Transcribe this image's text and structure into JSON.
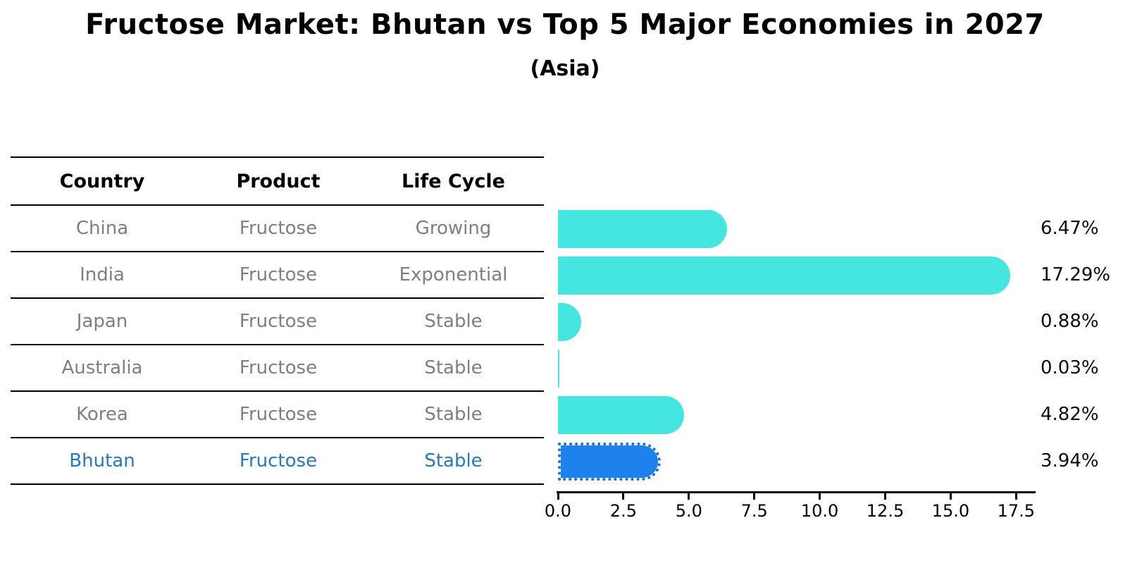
{
  "title": "Fructose Market: Bhutan vs Top 5 Major Economies in 2027",
  "subtitle": "(Asia)",
  "table": {
    "headers": [
      "Country",
      "Product",
      "Life Cycle"
    ],
    "rows": [
      {
        "country": "China",
        "product": "Fructose",
        "life_cycle": "Growing",
        "highlight": false
      },
      {
        "country": "India",
        "product": "Fructose",
        "life_cycle": "Exponential",
        "highlight": false
      },
      {
        "country": "Japan",
        "product": "Fructose",
        "life_cycle": "Stable",
        "highlight": false
      },
      {
        "country": "Australia",
        "product": "Fructose",
        "life_cycle": "Stable",
        "highlight": false
      },
      {
        "country": "Korea",
        "product": "Fructose",
        "life_cycle": "Stable",
        "highlight": false
      },
      {
        "country": "Bhutan",
        "product": "Fructose",
        "life_cycle": "Stable",
        "highlight": true
      }
    ]
  },
  "chart_data": {
    "type": "bar",
    "orientation": "horizontal",
    "categories": [
      "China",
      "India",
      "Japan",
      "Australia",
      "Korea",
      "Bhutan"
    ],
    "values": [
      6.47,
      17.29,
      0.88,
      0.03,
      4.82,
      3.94
    ],
    "value_labels": [
      "6.47%",
      "17.29%",
      "0.88%",
      "0.03%",
      "4.82%",
      "3.94%"
    ],
    "x_tick_labels": [
      "0.0",
      "2.5",
      "5.0",
      "7.5",
      "10.0",
      "12.5",
      "15.0",
      "17.5"
    ],
    "xlim": [
      0,
      18.3
    ],
    "grid": false,
    "legend": false,
    "bar_color": "#45e5e0",
    "highlight_bar_color": "#1e82ec",
    "highlight_index": 5,
    "highlight_text_color": "#2878be",
    "muted_text_color": "#7f7f7f"
  }
}
